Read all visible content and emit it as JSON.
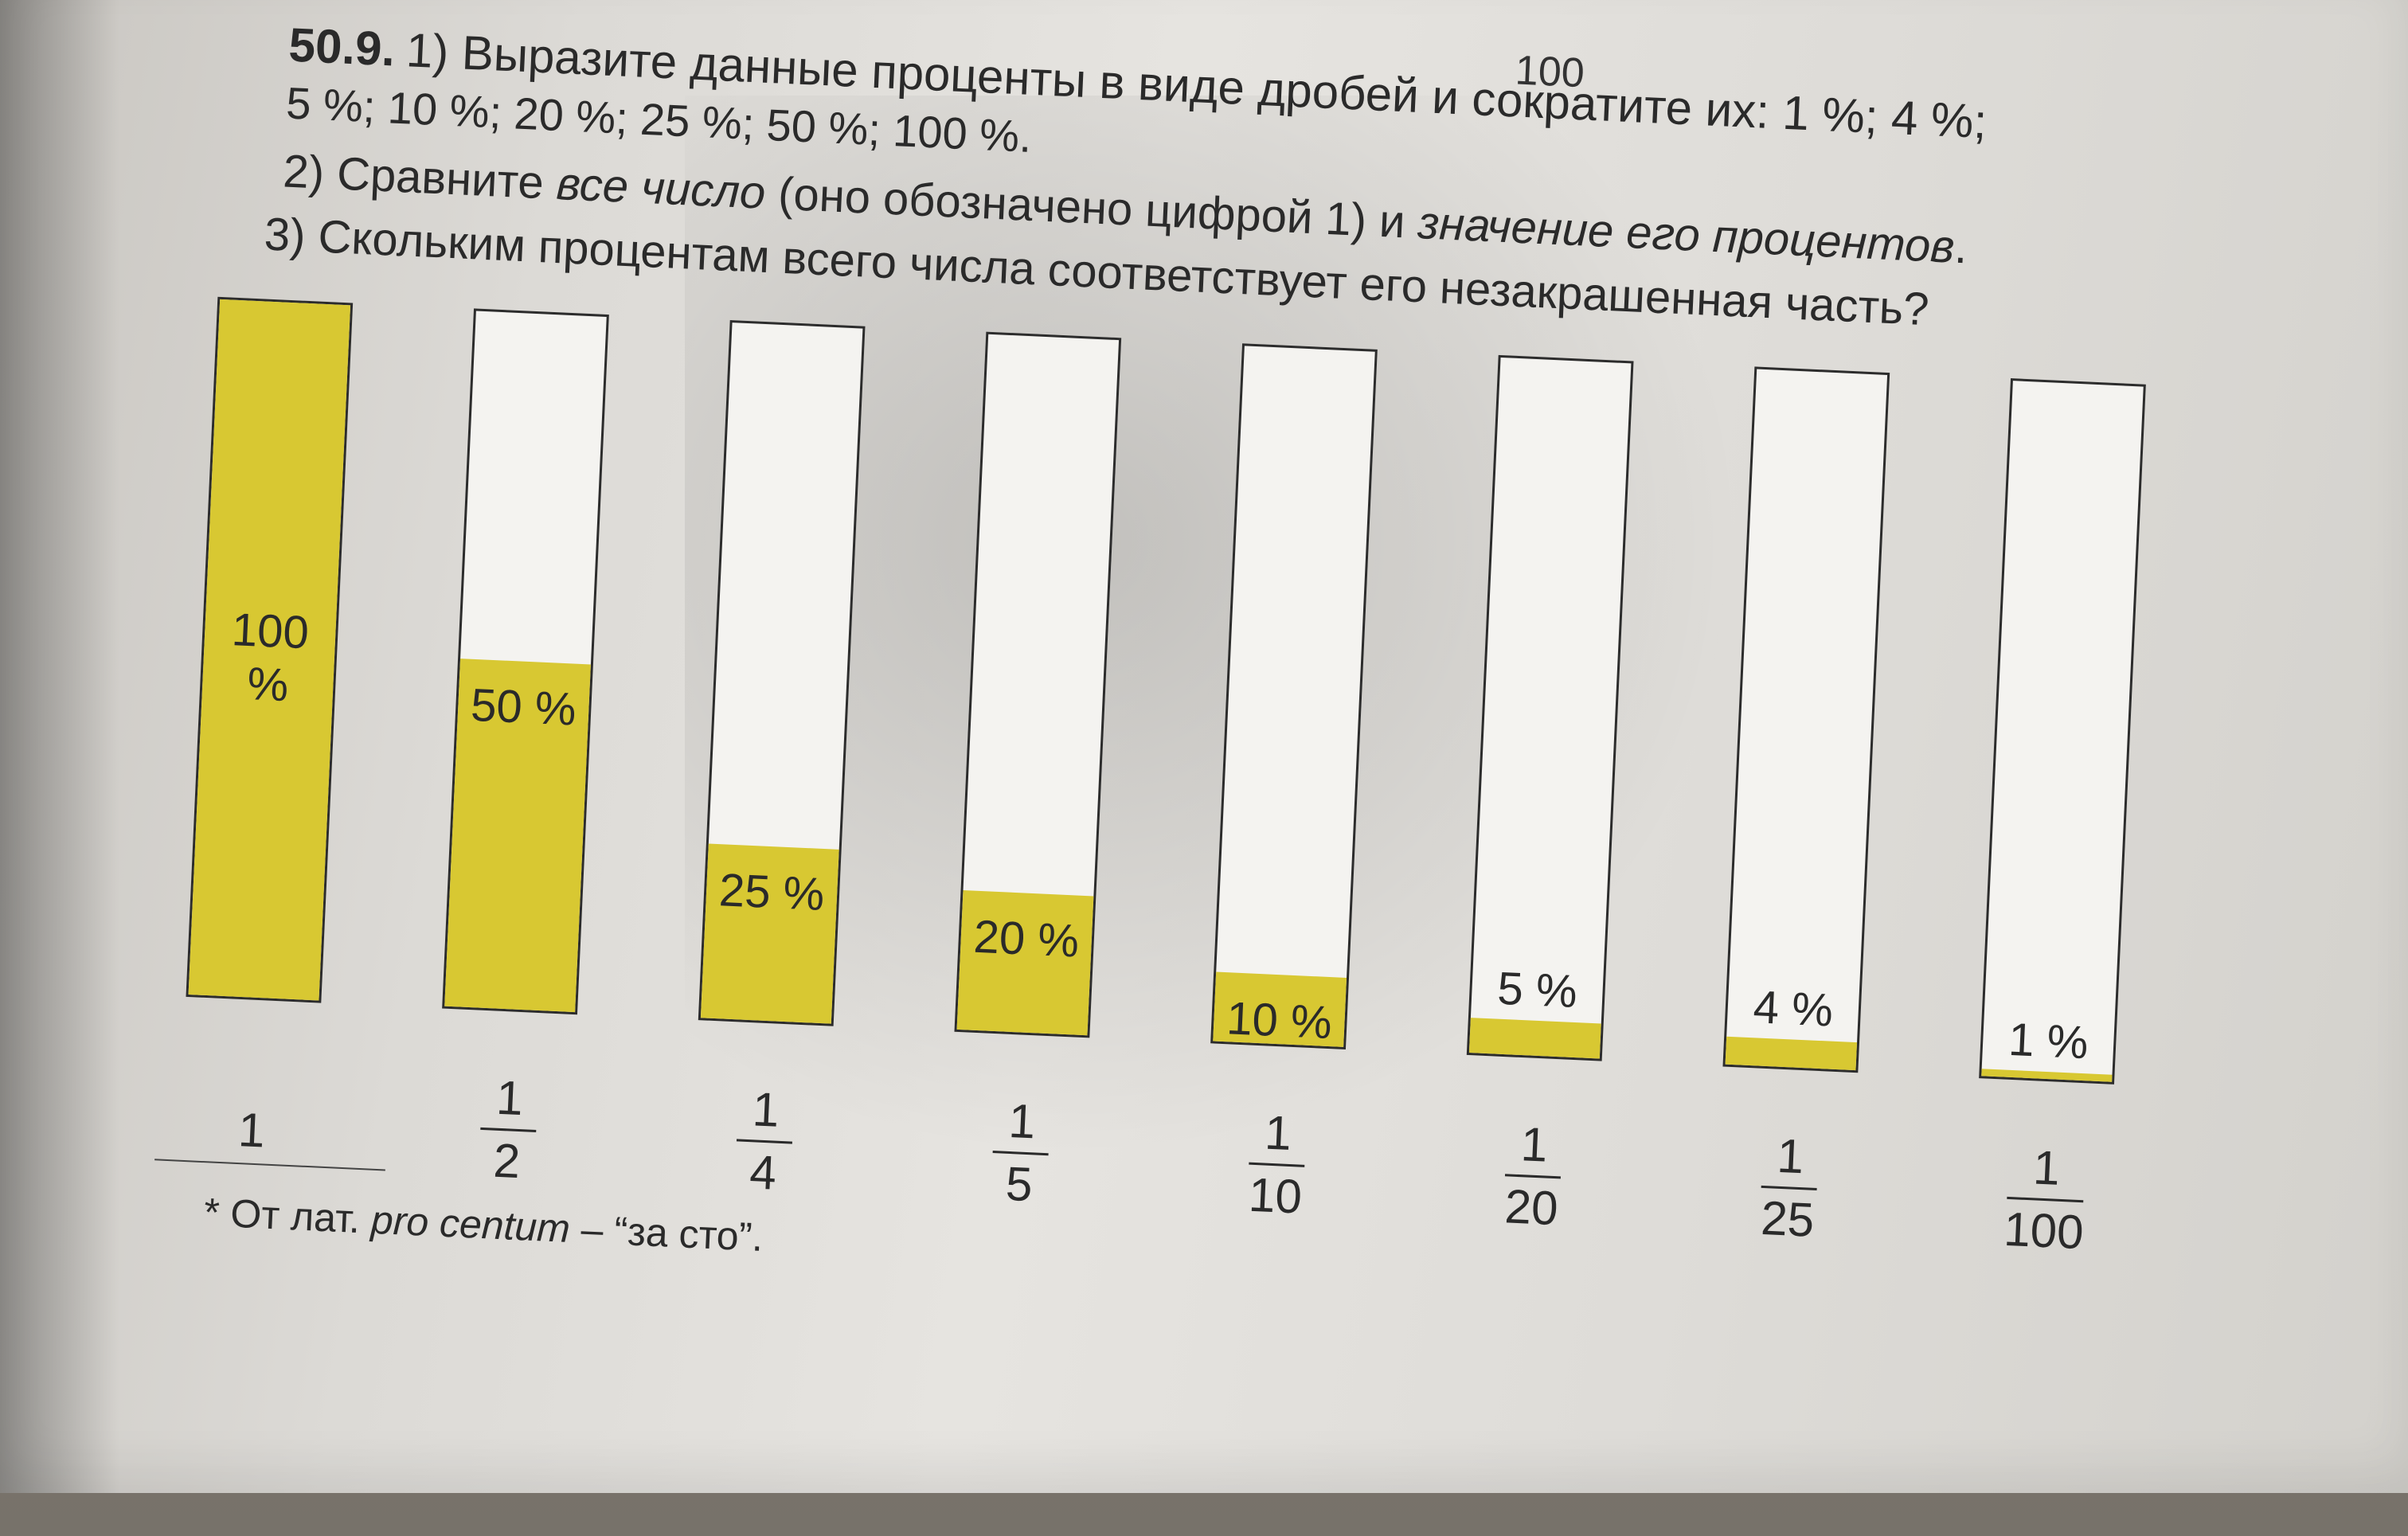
{
  "header": {
    "page_number": "100"
  },
  "task": {
    "number": "50.9.",
    "line1": "1) Выразите данные проценты в виде дробей и сократите их: 1 %; 4 %;",
    "line2": "5 %; 10 %; 20 %; 25 %; 50 %; 100 %.",
    "line3_start": "2) Сравните ",
    "line3_italic_1": "все число",
    "line3_middle": " (оно обозначено цифрой 1) и ",
    "line3_italic_2": "значение его процентов",
    "line3_end": ".",
    "line4": "3) Скольким процентам всего числа соответствует его незакрашенная часть?"
  },
  "chart_data": {
    "type": "bar",
    "categories": [
      "1",
      "1/2",
      "1/4",
      "1/5",
      "1/10",
      "1/20",
      "1/25",
      "1/100"
    ],
    "values": [
      1,
      0.5,
      0.25,
      0.2,
      0.1,
      0.05,
      0.04,
      0.01
    ],
    "bars": [
      {
        "percent_label": "100 %",
        "fraction_num": "1",
        "fraction_den": "",
        "fill": 1.0
      },
      {
        "percent_label": "50 %",
        "fraction_num": "1",
        "fraction_den": "2",
        "fill": 0.5
      },
      {
        "percent_label": "25 %",
        "fraction_num": "1",
        "fraction_den": "4",
        "fill": 0.25
      },
      {
        "percent_label": "20 %",
        "fraction_num": "1",
        "fraction_den": "5",
        "fill": 0.2
      },
      {
        "percent_label": "10 %",
        "fraction_num": "1",
        "fraction_den": "10",
        "fill": 0.1
      },
      {
        "percent_label": "5 %",
        "fraction_num": "1",
        "fraction_den": "20",
        "fill": 0.05
      },
      {
        "percent_label": "4 %",
        "fraction_num": "1",
        "fraction_den": "25",
        "fill": 0.04
      },
      {
        "percent_label": "1 %",
        "fraction_num": "1",
        "fraction_den": "100",
        "fill": 0.01
      }
    ],
    "fill_color": "#d8c832",
    "title": "",
    "xlabel": "",
    "ylabel": ""
  },
  "footnote": {
    "text_start": "* От лат. ",
    "text_italic": "pro centum",
    "text_end": " – “за сто”."
  }
}
